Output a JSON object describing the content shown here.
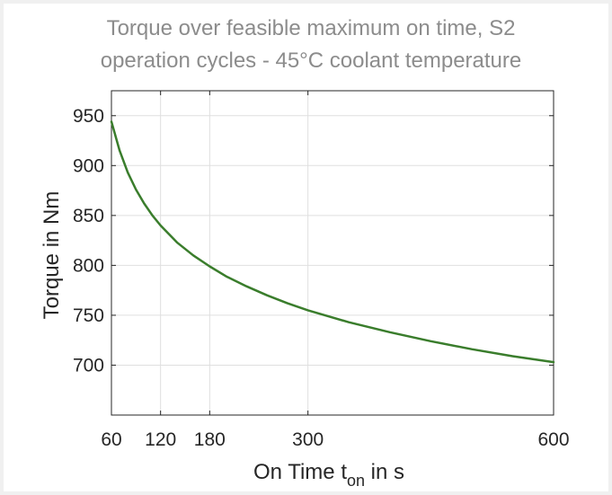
{
  "chart_data": {
    "type": "line",
    "title_lines": [
      "Torque over feasible maximum on time, S2",
      "operation cycles - 45°C coolant temperature"
    ],
    "xlabel": {
      "prefix": "On Time t",
      "subscript": "on",
      "suffix": " in s"
    },
    "ylabel": "Torque in Nm",
    "xlim": [
      60,
      600
    ],
    "ylim": [
      650,
      975
    ],
    "xticks": [
      60,
      120,
      180,
      300,
      600
    ],
    "yticks": [
      700,
      750,
      800,
      850,
      900,
      950
    ],
    "grid": true,
    "line_color": "#3a7d2c",
    "series": [
      {
        "x": [
          60,
          70,
          80,
          90,
          100,
          110,
          120,
          140,
          160,
          180,
          200,
          225,
          250,
          275,
          300,
          350,
          400,
          450,
          500,
          550,
          600
        ],
        "y": [
          944,
          915,
          893,
          876,
          862,
          850,
          840,
          823,
          810,
          799,
          789,
          779,
          770,
          762,
          755,
          743,
          733,
          724,
          716,
          709,
          703
        ]
      }
    ]
  }
}
